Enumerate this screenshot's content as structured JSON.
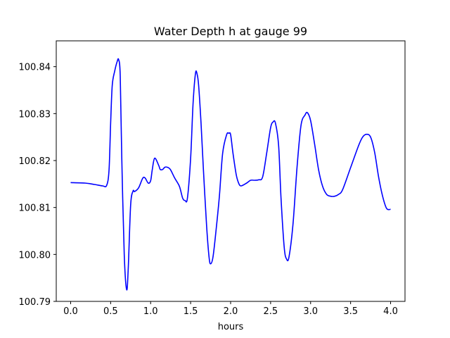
{
  "chart_data": {
    "type": "line",
    "title": "Water Depth h at gauge 99",
    "xlabel": "hours",
    "ylabel": "",
    "xlim": [
      -0.18,
      4.18
    ],
    "ylim": [
      100.79,
      100.8455
    ],
    "grid": false,
    "xticks": [
      0.0,
      0.5,
      1.0,
      1.5,
      2.0,
      2.5,
      3.0,
      3.5,
      4.0
    ],
    "xtick_labels": [
      "0.0",
      "0.5",
      "1.0",
      "1.5",
      "2.0",
      "2.5",
      "3.0",
      "3.5",
      "4.0"
    ],
    "yticks": [
      100.79,
      100.8,
      100.81,
      100.82,
      100.83,
      100.84
    ],
    "ytick_labels": [
      "100.79",
      "100.80",
      "100.81",
      "100.82",
      "100.83",
      "100.84"
    ],
    "series": [
      {
        "color": "#0000ff",
        "x": [
          0.0,
          0.18,
          0.3,
          0.4,
          0.45,
          0.48,
          0.5,
          0.52,
          0.55,
          0.58,
          0.6,
          0.62,
          0.64,
          0.67,
          0.7,
          0.72,
          0.75,
          0.78,
          0.8,
          0.85,
          0.9,
          0.93,
          0.97,
          1.0,
          1.02,
          1.05,
          1.1,
          1.12,
          1.15,
          1.18,
          1.22,
          1.25,
          1.3,
          1.36,
          1.4,
          1.43,
          1.46,
          1.5,
          1.53,
          1.56,
          1.58,
          1.6,
          1.63,
          1.66,
          1.7,
          1.73,
          1.75,
          1.78,
          1.82,
          1.86,
          1.9,
          1.95,
          1.98,
          2.0,
          2.03,
          2.07,
          2.1,
          2.13,
          2.2,
          2.25,
          2.3,
          2.35,
          2.4,
          2.45,
          2.5,
          2.53,
          2.56,
          2.6,
          2.63,
          2.67,
          2.7,
          2.73,
          2.78,
          2.83,
          2.88,
          2.93,
          2.96,
          3.0,
          3.05,
          3.1,
          3.15,
          3.2,
          3.25,
          3.3,
          3.35,
          3.4,
          3.5,
          3.6,
          3.65,
          3.7,
          3.75,
          3.8,
          3.85,
          3.9,
          3.95,
          4.0
        ],
        "y": [
          100.8153,
          100.8152,
          100.8149,
          100.8146,
          100.8147,
          100.818,
          100.828,
          100.836,
          100.839,
          100.841,
          100.8415,
          100.838,
          100.82,
          100.8,
          100.7925,
          100.797,
          100.8105,
          100.8135,
          100.8134,
          100.8142,
          100.8162,
          100.8163,
          100.8152,
          100.8157,
          100.818,
          100.8205,
          100.819,
          100.8181,
          100.8181,
          100.8186,
          100.8185,
          100.818,
          100.8163,
          100.8145,
          100.812,
          100.8115,
          100.812,
          100.8205,
          100.832,
          100.8385,
          100.8385,
          100.836,
          100.828,
          100.818,
          100.806,
          100.7995,
          100.798,
          100.7995,
          100.8055,
          100.8125,
          100.8215,
          100.8255,
          100.8258,
          100.8255,
          100.8215,
          100.817,
          100.8152,
          100.8146,
          100.8152,
          100.8158,
          100.8158,
          100.8159,
          100.8165,
          100.8215,
          100.827,
          100.8282,
          100.828,
          100.8232,
          100.812,
          100.8015,
          100.799,
          100.7995,
          100.8065,
          100.8185,
          100.8275,
          100.8297,
          100.8302,
          100.8285,
          100.8235,
          100.818,
          100.8145,
          100.8128,
          100.8124,
          100.8124,
          100.8128,
          100.8138,
          100.8185,
          100.8232,
          100.825,
          100.8256,
          100.825,
          100.8218,
          100.8165,
          100.8124,
          100.8098,
          100.8096
        ]
      }
    ]
  }
}
